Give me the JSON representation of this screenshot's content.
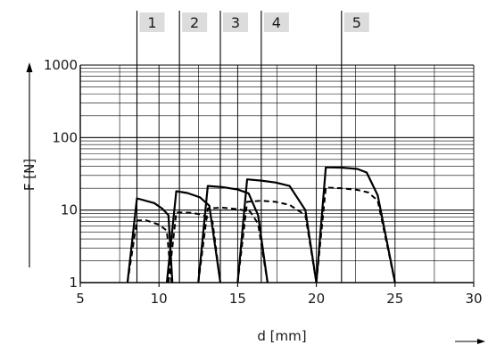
{
  "chart_data": {
    "type": "line",
    "xlabel": "d [mm]",
    "ylabel": "F [N]",
    "xlim": [
      5,
      30
    ],
    "ylim": [
      1,
      1000
    ],
    "yscale": "log",
    "grid": true,
    "x_ticks": [
      5,
      10,
      15,
      20,
      25,
      30
    ],
    "x_tick_labels": [
      "5",
      "10",
      "15",
      "20",
      "25",
      "30"
    ],
    "y_ticks": [
      1,
      10,
      100,
      1000
    ],
    "y_tick_labels": [
      "1",
      "10",
      "100",
      "1000"
    ],
    "colors": {
      "line": "#000000",
      "grid": "#000000",
      "tab": "#dcdcdc"
    },
    "groups": [
      {
        "label": "1",
        "marker_x": 8.6,
        "solid": [
          [
            8.0,
            1
          ],
          [
            8.6,
            14.5
          ],
          [
            9.7,
            12.5
          ],
          [
            10.2,
            10.5
          ],
          [
            10.6,
            8.5
          ],
          [
            10.85,
            1
          ]
        ],
        "dashed": [
          [
            8.0,
            1
          ],
          [
            8.6,
            7.2
          ],
          [
            9.2,
            7.2
          ],
          [
            10.0,
            6.3
          ],
          [
            10.5,
            5.2
          ],
          [
            10.8,
            1
          ]
        ]
      },
      {
        "label": "2",
        "marker_x": 11.3,
        "solid": [
          [
            10.5,
            1
          ],
          [
            11.1,
            18.2
          ],
          [
            11.8,
            17.2
          ],
          [
            12.6,
            15.0
          ],
          [
            13.2,
            11.5
          ],
          [
            13.9,
            1
          ]
        ],
        "dashed": [
          [
            10.6,
            1
          ],
          [
            11.1,
            9.3
          ],
          [
            12.0,
            9.2
          ],
          [
            12.8,
            8.6
          ],
          [
            13.4,
            7.0
          ],
          [
            13.9,
            1
          ]
        ]
      },
      {
        "label": "3",
        "marker_x": 13.9,
        "solid": [
          [
            12.5,
            1
          ],
          [
            13.1,
            21.5
          ],
          [
            14.0,
            20.8
          ],
          [
            15.0,
            19.2
          ],
          [
            15.7,
            17.0
          ],
          [
            16.3,
            8.5
          ],
          [
            16.9,
            1
          ]
        ],
        "dashed": [
          [
            12.5,
            1
          ],
          [
            13.1,
            10.5
          ],
          [
            14.0,
            10.8
          ],
          [
            15.0,
            10.3
          ],
          [
            15.8,
            9.5
          ],
          [
            16.3,
            6.5
          ],
          [
            16.9,
            1
          ]
        ]
      },
      {
        "label": "4",
        "marker_x": 16.5,
        "solid": [
          [
            15.0,
            1
          ],
          [
            15.6,
            26.5
          ],
          [
            16.5,
            25.5
          ],
          [
            17.4,
            24.0
          ],
          [
            18.3,
            21.5
          ],
          [
            19.3,
            10.0
          ],
          [
            20.0,
            1
          ]
        ],
        "dashed": [
          [
            15.0,
            1
          ],
          [
            15.6,
            13.0
          ],
          [
            16.5,
            13.5
          ],
          [
            17.4,
            13.0
          ],
          [
            18.3,
            11.8
          ],
          [
            19.3,
            8.5
          ],
          [
            20.0,
            1
          ]
        ]
      },
      {
        "label": "5",
        "marker_x": 21.6,
        "solid": [
          [
            20.0,
            1
          ],
          [
            20.6,
            39.0
          ],
          [
            21.6,
            38.5
          ],
          [
            22.6,
            37.0
          ],
          [
            23.2,
            33.0
          ],
          [
            23.9,
            16.0
          ],
          [
            25.0,
            1
          ]
        ],
        "dashed": [
          [
            20.0,
            1
          ],
          [
            20.6,
            20.5
          ],
          [
            21.6,
            20.0
          ],
          [
            22.6,
            19.0
          ],
          [
            23.3,
            17.5
          ],
          [
            23.9,
            13.5
          ],
          [
            25.0,
            1
          ]
        ]
      }
    ]
  }
}
